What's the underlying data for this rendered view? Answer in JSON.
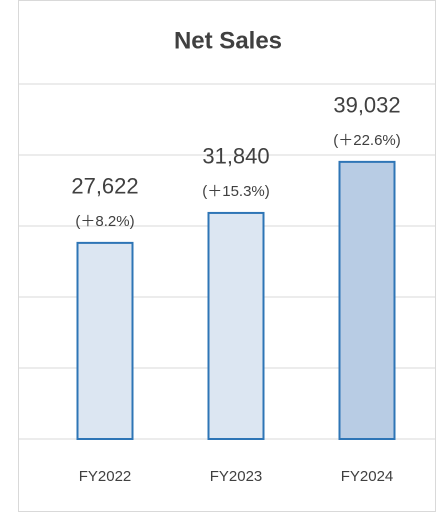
{
  "chart_data": {
    "type": "bar",
    "title": "Net Sales",
    "categories": [
      "FY2022",
      "FY2023",
      "FY2024"
    ],
    "values": [
      27622,
      31840,
      39032
    ],
    "value_labels": [
      "27,622",
      "31,840",
      "39,032"
    ],
    "growth_labels": [
      "(＋8.2%)",
      "(＋15.3%)",
      "(＋22.6%)"
    ],
    "colors": [
      "#dce6f2",
      "#dce6f2",
      "#b8cce4"
    ],
    "edge_color": "#2e75b6",
    "ylim": [
      0,
      50000
    ],
    "yticks": [
      0,
      10000,
      20000,
      30000,
      40000,
      50000
    ],
    "grid": true
  }
}
